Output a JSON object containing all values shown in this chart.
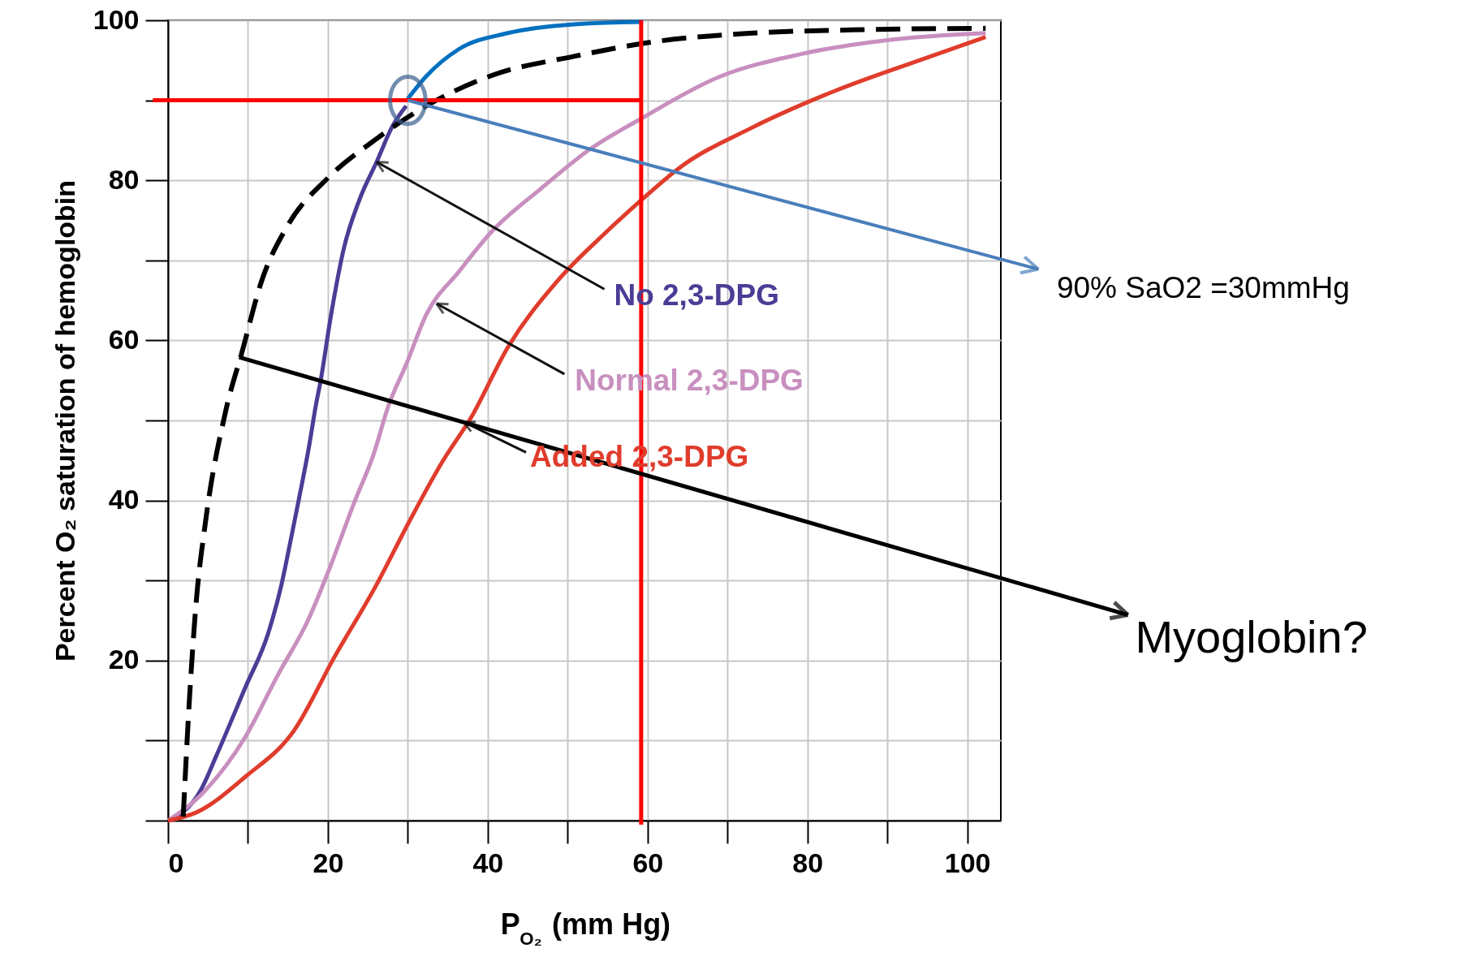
{
  "chart_data": {
    "type": "line",
    "xlabel": "P$_{O₂}$ (mm Hg)",
    "ylabel": "Percent O₂ saturation of hemoglobin",
    "xlim": [
      0,
      104.2
    ],
    "ylim": [
      0,
      100
    ],
    "xticks": [
      0,
      {
        "value": 10,
        "label": null
      },
      20,
      {
        "value": 30,
        "label": null
      },
      40,
      {
        "value": 50,
        "label": null
      },
      60,
      {
        "value": 70,
        "label": null
      },
      80,
      {
        "value": 90,
        "label": null
      },
      100
    ],
    "yticks": [
      {
        "value": 0,
        "label": null
      },
      {
        "value": 10,
        "label": null
      },
      20,
      {
        "value": 30,
        "label": null
      },
      40,
      {
        "value": 50,
        "label": null
      },
      60,
      {
        "value": 70,
        "label": null
      },
      80,
      {
        "value": 90,
        "label": null
      },
      100
    ],
    "grid": true,
    "series": [
      {
        "name": "No 2,3-DPG",
        "color": "#4b3d96",
        "x": [
          0,
          4.1,
          6.0,
          9.7,
          12.5,
          14.2,
          15.4,
          16.4,
          17.6,
          18.5,
          19.1,
          20.4,
          22.0,
          24.0,
          26.1,
          28.1,
          29.8
        ],
        "values": [
          0,
          3.8,
          8.0,
          16.7,
          23.3,
          29.5,
          35.3,
          40.3,
          46.5,
          51.9,
          55.0,
          63.2,
          71.5,
          77.7,
          82.3,
          86.8,
          89.3
        ]
      },
      {
        "color": "#0070c0",
        "x": [
          30.0,
          32.3,
          36.4,
          42.5,
          50.8,
          59.4
        ],
        "values": [
          90.2,
          93.0,
          96.4,
          98.4,
          99.5,
          99.8
        ]
      },
      {
        "name": "Normal 2,3-DPG",
        "color": "#c88fbf",
        "x": [
          0,
          3.9,
          9.7,
          13.8,
          17.5,
          20.4,
          23.2,
          25.7,
          27.6,
          29.8,
          32.3,
          36.4,
          40.5,
          46.7,
          52.8,
          59.0,
          68.9,
          79.3,
          89.8,
          102.3
        ],
        "values": [
          0,
          3.0,
          10.5,
          18.3,
          25.0,
          32.0,
          39.5,
          45.7,
          51.9,
          57.0,
          63.2,
          68.6,
          73.6,
          79.0,
          83.9,
          87.6,
          92.9,
          95.8,
          97.5,
          98.4
        ]
      },
      {
        "name": "Added 2,3-DPG",
        "color": "#e03c2c",
        "x": [
          0,
          3.5,
          9.7,
          15.8,
          20.8,
          26.1,
          30.2,
          34.3,
          38.0,
          42.5,
          48.7,
          54.9,
          59.4,
          63.9,
          73.1,
          83.5,
          94.0,
          102.3
        ],
        "values": [
          0,
          1.0,
          5.5,
          11.3,
          20.4,
          29.5,
          37.4,
          44.8,
          50.5,
          59.1,
          67.4,
          73.6,
          77.7,
          81.5,
          86.6,
          91.2,
          95.0,
          97.9
        ]
      },
      {
        "color": "#000000",
        "line_style": "dashed",
        "x": [
          1.9,
          2.7,
          3.5,
          4.7,
          7.2,
          9.3,
          11.7,
          15.0,
          19.9,
          26.1,
          32.3,
          40.5,
          50.8,
          61.4,
          73.1,
          85.5,
          102.3
        ],
        "values": [
          0.5,
          15.5,
          27.0,
          37.4,
          51.1,
          58.7,
          67.4,
          74.4,
          80.2,
          85.2,
          89.3,
          93.1,
          95.5,
          97.4,
          98.4,
          98.8,
          99.0
        ]
      }
    ],
    "ref_lines": [
      {
        "axis": "y",
        "value": 90,
        "color": "#ff0000"
      },
      {
        "axis": "x",
        "value": 59.2,
        "color": "#ff0000"
      }
    ],
    "annotations": [
      {
        "text": "90% SaO2 =30mmHg",
        "x": 30,
        "y": 90
      },
      {
        "text": "Myoglobin?",
        "x": 8.9,
        "y": 57.9
      }
    ]
  }
}
